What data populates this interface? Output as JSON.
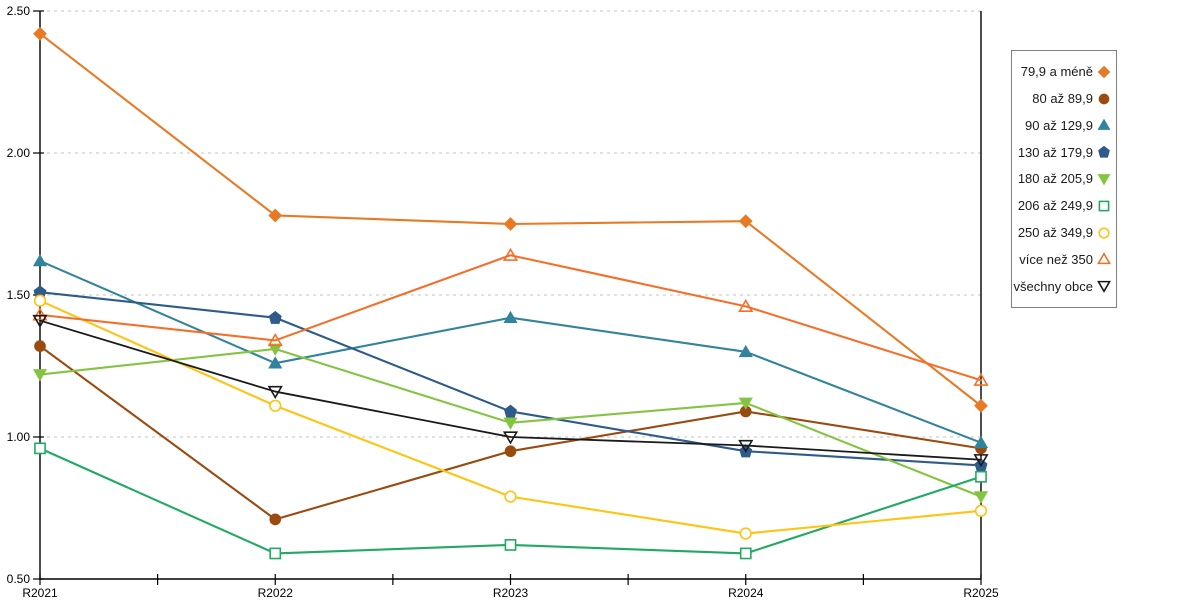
{
  "chart_data": {
    "type": "line",
    "title": "",
    "xlabel": "",
    "ylabel": "",
    "categories": [
      "R2021",
      "R2022",
      "R2023",
      "R2024",
      "R2025"
    ],
    "series": [
      {
        "name": "79,9 a méně",
        "marker": "diamond",
        "fill": "filled",
        "color": "#E87A25",
        "values": [
          2.42,
          1.78,
          1.75,
          1.76,
          1.11
        ]
      },
      {
        "name": "80 až 89,9",
        "marker": "circle",
        "fill": "filled",
        "color": "#9A4B10",
        "values": [
          1.32,
          0.71,
          0.95,
          1.09,
          0.96
        ]
      },
      {
        "name": "90 až 129,9",
        "marker": "triangle-up",
        "fill": "filled",
        "color": "#31849B",
        "values": [
          1.62,
          1.26,
          1.42,
          1.3,
          0.98
        ]
      },
      {
        "name": "130 až 179,9",
        "marker": "pentagon",
        "fill": "filled",
        "color": "#2E5B8C",
        "values": [
          1.51,
          1.42,
          1.09,
          0.95,
          0.9
        ]
      },
      {
        "name": "180 až 205,9",
        "marker": "triangle-down",
        "fill": "filled",
        "color": "#84C441",
        "values": [
          1.22,
          1.31,
          1.05,
          1.12,
          0.79
        ]
      },
      {
        "name": "206 až 249,9",
        "marker": "square",
        "fill": "open",
        "color": "#22A964",
        "values": [
          0.96,
          0.59,
          0.62,
          0.59,
          0.86
        ]
      },
      {
        "name": "250 až 349,9",
        "marker": "circle",
        "fill": "open",
        "color": "#FFC311",
        "values": [
          1.48,
          1.11,
          0.79,
          0.66,
          0.74
        ]
      },
      {
        "name": "více než 350",
        "marker": "triangle-up",
        "fill": "open",
        "color": "#F4702A",
        "values": [
          1.43,
          1.34,
          1.64,
          1.46,
          1.2
        ]
      },
      {
        "name": "všechny obce",
        "marker": "triangle-down",
        "fill": "open",
        "color": "#1A1A1A",
        "values": [
          1.41,
          1.16,
          1.0,
          0.97,
          0.92
        ]
      }
    ],
    "ylim": [
      0.5,
      2.5
    ],
    "y_ticks": [
      {
        "value": 0.5,
        "label": "0.50"
      },
      {
        "value": 1.0,
        "label": "1.00"
      },
      {
        "value": 1.5,
        "label": "1.50"
      },
      {
        "value": 2.0,
        "label": "2.00"
      },
      {
        "value": 2.5,
        "label": "2.50"
      }
    ],
    "grid": "horizontal-dashed",
    "grid_color": "#C3C3C3",
    "axis_color": "#000000",
    "legend_position": "right"
  }
}
